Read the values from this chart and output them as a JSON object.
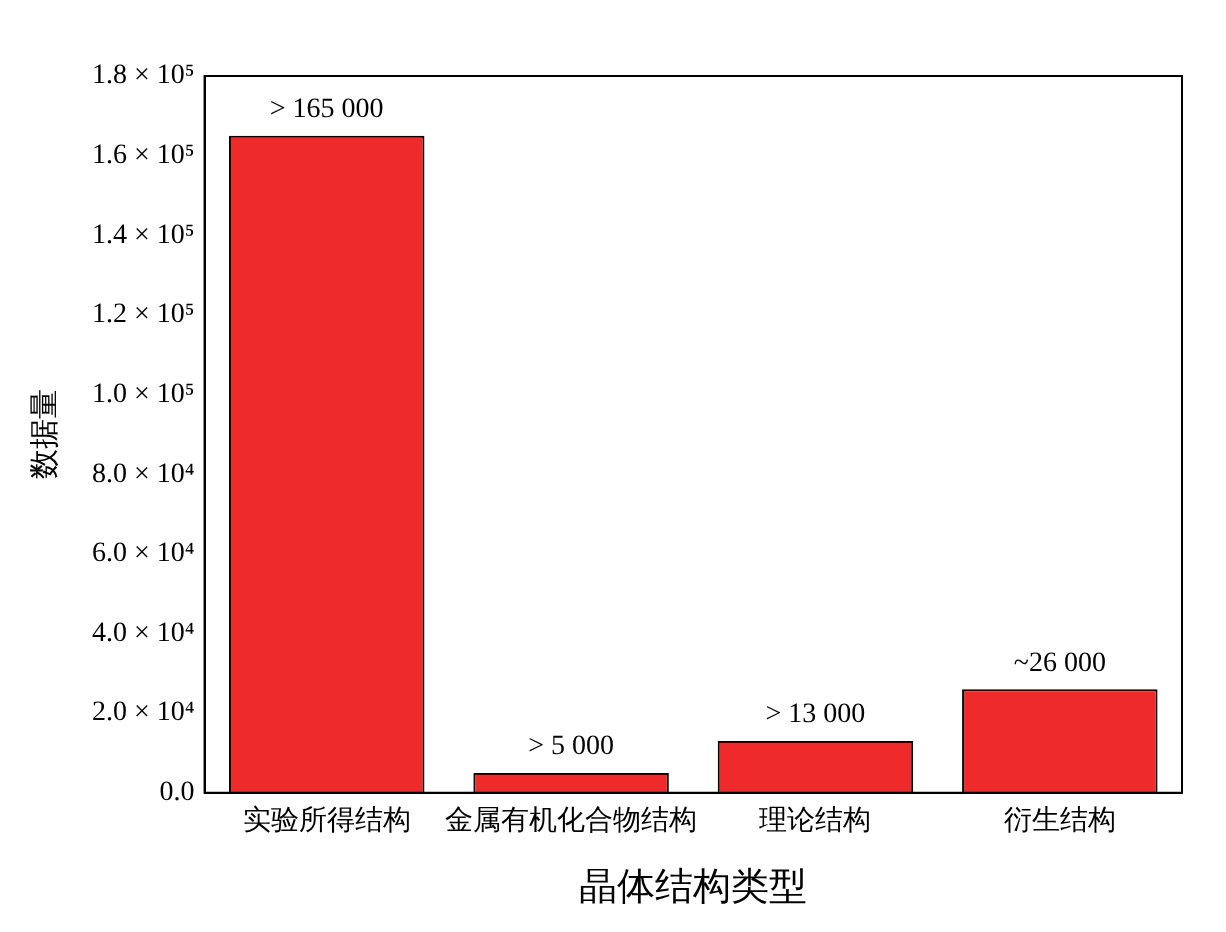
{
  "chart_data": {
    "type": "bar",
    "xlabel": "晶体结构类型",
    "ylabel": "数据量",
    "categories": [
      "实验所得结构",
      "金属有机化合物结构",
      "理论结构",
      "衍生结构"
    ],
    "values": [
      165000,
      5000,
      13000,
      26000
    ],
    "value_labels": [
      "> 165 000",
      "> 5 000",
      "> 13 000",
      "~26 000"
    ],
    "color": "#ee2a2a",
    "ylim": [
      0,
      180000
    ],
    "yticks": [
      {
        "value": 0,
        "label": "0.0"
      },
      {
        "value": 20000,
        "label": "2.0 × 10⁴"
      },
      {
        "value": 40000,
        "label": "4.0 × 10⁴"
      },
      {
        "value": 60000,
        "label": "6.0 × 10⁴"
      },
      {
        "value": 80000,
        "label": "8.0 × 10⁴"
      },
      {
        "value": 100000,
        "label": "1.0 × 10⁵"
      },
      {
        "value": 120000,
        "label": "1.2 × 10⁵"
      },
      {
        "value": 140000,
        "label": "1.4 × 10⁵"
      },
      {
        "value": 160000,
        "label": "1.6 × 10⁵"
      },
      {
        "value": 180000,
        "label": "1.8 × 10⁵"
      }
    ],
    "grid": false,
    "legend": false
  }
}
